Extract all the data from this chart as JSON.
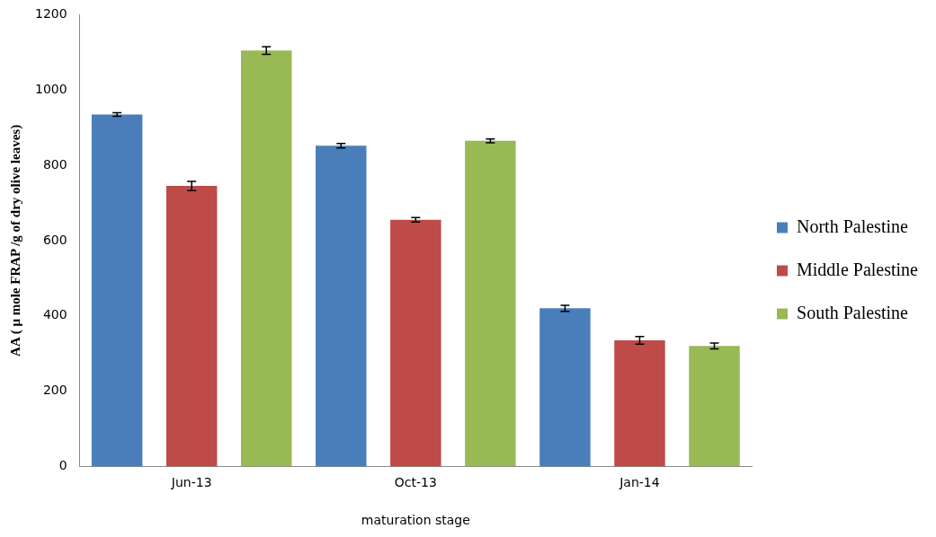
{
  "chart_data": {
    "type": "bar",
    "xlabel": "maturation stage",
    "ylabel": "AA ( μ mole FRAP /g of dry olive leaves)",
    "categories": [
      "Jun-13",
      "Oct-13",
      "Jan-14"
    ],
    "series": [
      {
        "name": "North Palestine",
        "color": "#4a7ebb",
        "values": [
          935,
          852,
          420
        ],
        "errors": [
          5,
          6,
          8
        ]
      },
      {
        "name": "Middle Palestine",
        "color": "#be4b48",
        "values": [
          745,
          655,
          335
        ],
        "errors": [
          12,
          6,
          10
        ]
      },
      {
        "name": "South Palestine",
        "color": "#98b954",
        "values": [
          1105,
          865,
          320
        ],
        "errors": [
          10,
          5,
          8
        ]
      }
    ],
    "ylim": [
      0,
      1200
    ],
    "yticks": [
      0,
      200,
      400,
      600,
      800,
      1000,
      1200
    ],
    "grid": false,
    "legend": "right"
  }
}
